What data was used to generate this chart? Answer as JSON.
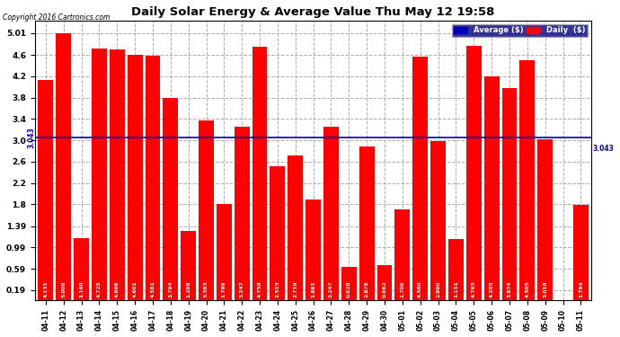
{
  "title": "Daily Solar Energy & Average Value Thu May 12 19:58",
  "copyright": "Copyright 2016 Cartronics.com",
  "average_value": 3.043,
  "categories": [
    "04-11",
    "04-12",
    "04-13",
    "04-14",
    "04-15",
    "04-16",
    "04-17",
    "04-18",
    "04-19",
    "04-20",
    "04-21",
    "04-22",
    "04-23",
    "04-24",
    "04-25",
    "04-26",
    "04-27",
    "04-28",
    "04-29",
    "04-30",
    "05-01",
    "05-02",
    "05-03",
    "05-04",
    "05-05",
    "05-06",
    "05-07",
    "05-08",
    "05-09",
    "05-10",
    "05-11"
  ],
  "values": [
    4.131,
    5.006,
    1.16,
    4.725,
    4.696,
    4.601,
    4.581,
    3.794,
    1.298,
    3.363,
    1.799,
    3.247,
    4.758,
    2.515,
    2.719,
    1.891,
    3.247,
    0.628,
    2.878,
    0.662,
    1.709,
    4.56,
    2.99,
    1.151,
    4.765,
    4.205,
    3.974,
    4.505,
    3.016,
    0.0,
    1.794
  ],
  "bar_color": "#ff0000",
  "average_line_color": "#0000bb",
  "background_color": "#ffffff",
  "grid_color": "#999999",
  "yticks": [
    0.19,
    0.59,
    0.99,
    1.39,
    1.8,
    2.2,
    2.6,
    3.0,
    3.4,
    3.8,
    4.2,
    4.6,
    5.01
  ],
  "ylim": [
    0,
    5.25
  ],
  "legend_avg_color": "#0000bb",
  "legend_daily_color": "#ff0000",
  "legend_bg_color": "#000080",
  "legend_text_color": "#ffffff",
  "figwidth": 6.9,
  "figheight": 3.75,
  "dpi": 100
}
